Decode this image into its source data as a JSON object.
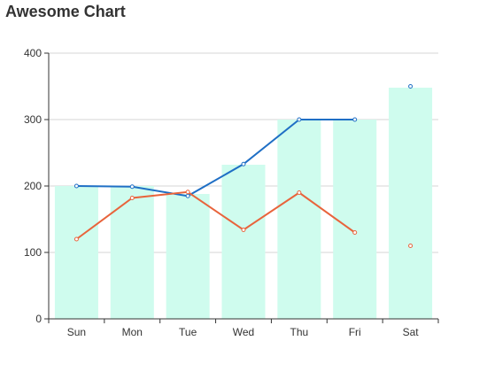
{
  "chart_data": {
    "type": "bar",
    "title": "Awesome Chart",
    "categories": [
      "Sun",
      "Mon",
      "Tue",
      "Wed",
      "Thu",
      "Fri",
      "Sat"
    ],
    "ylim": [
      0,
      400
    ],
    "yticks": [
      "0",
      "100",
      "200",
      "300",
      "400"
    ],
    "grid": true,
    "bars": {
      "values": [
        200,
        200,
        188,
        232,
        300,
        300,
        348
      ],
      "color": "#cffcee"
    },
    "lines": [
      {
        "values": [
          200,
          199,
          185,
          233,
          300,
          300,
          350
        ],
        "color": "#1f6fc5"
      },
      {
        "values": [
          120,
          182,
          191,
          134,
          190,
          130,
          110
        ],
        "color": "#e8643c"
      }
    ],
    "line_break_before_last": true
  }
}
